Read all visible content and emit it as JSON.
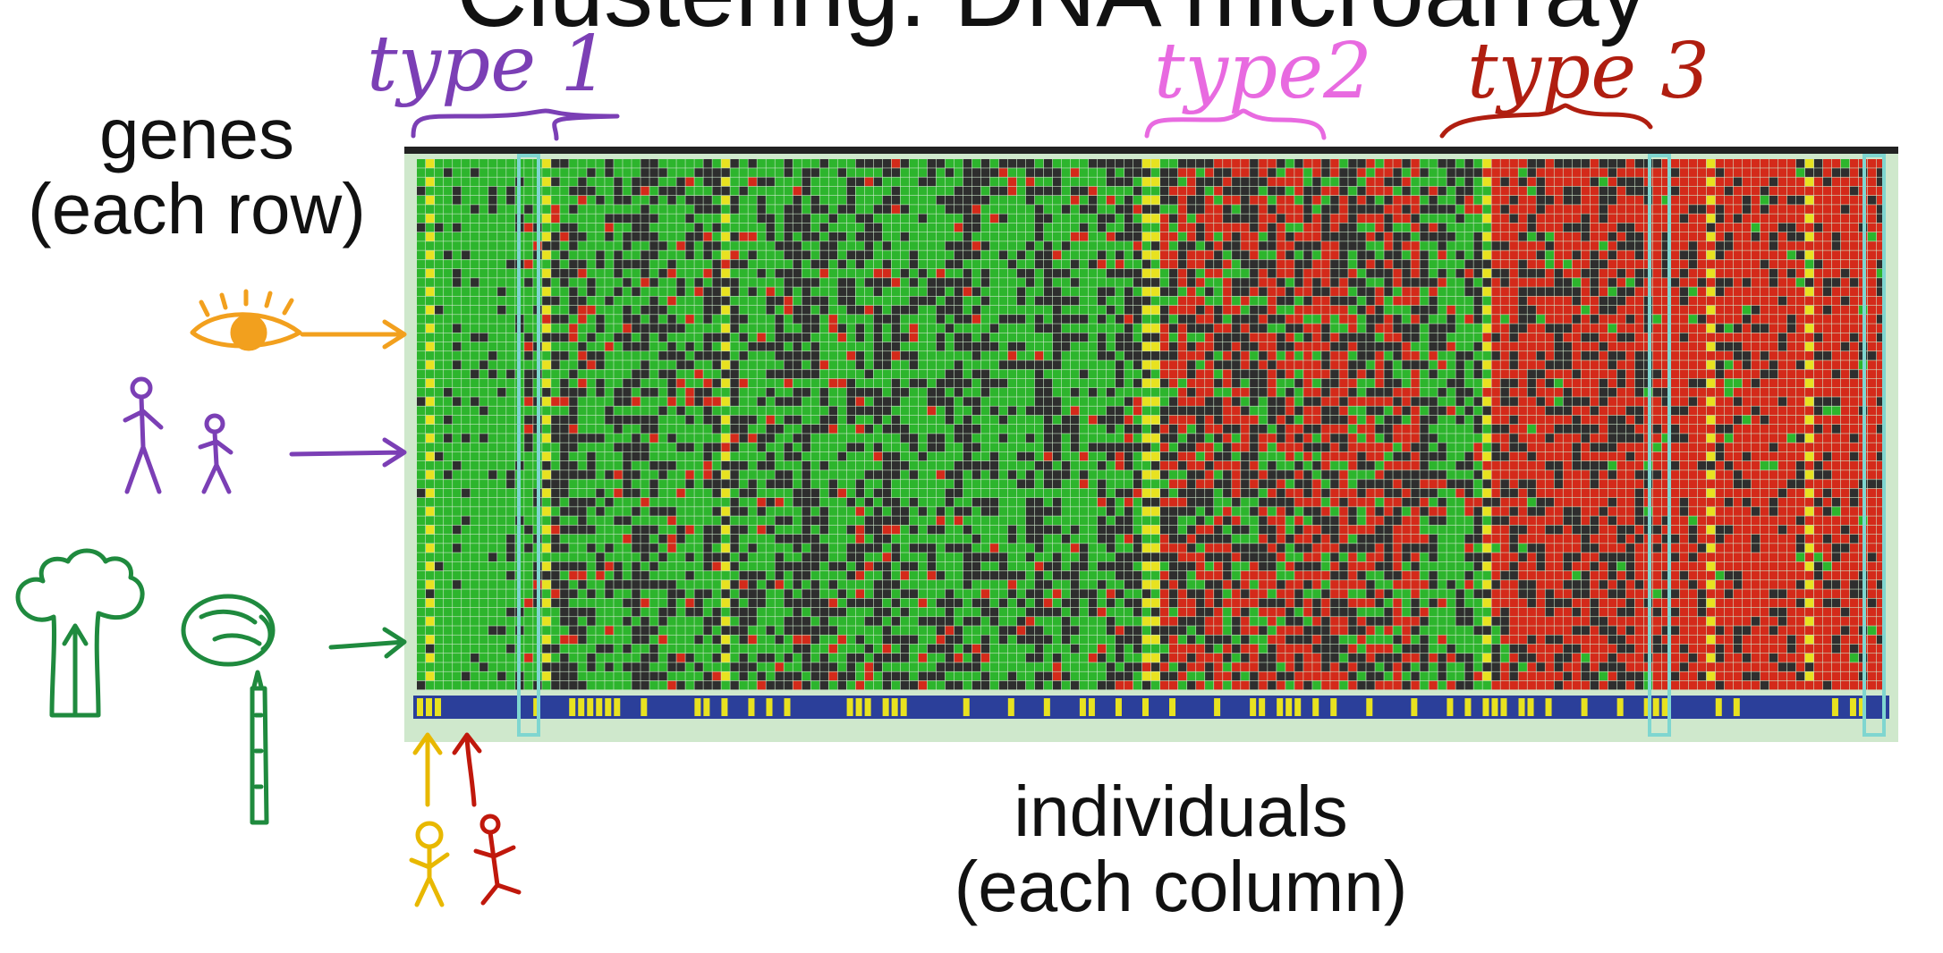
{
  "title": "Clustering: DNA microarray",
  "rows_label": "genes\n(each row)",
  "columns_label": "individuals\n(each column)",
  "clusters": [
    {
      "label": "type 1",
      "color": "#7b3fb5"
    },
    {
      "label": "type2",
      "color": "#e86ae0"
    },
    {
      "label": "type 3",
      "color": "#b01e10"
    }
  ],
  "colors": {
    "green": "#2db52d",
    "red": "#d42a1a",
    "dark": "#2e2e2e",
    "yellow": "#e8e220",
    "blue": "#2b3f9a",
    "frame": "#cfe8cc",
    "cyan": "#7fd6d0"
  },
  "annotations": [
    {
      "icon": "eye-icon",
      "color": "#f2a01e"
    },
    {
      "icon": "stick-figures-icon",
      "color": "#7b3fb5"
    },
    {
      "icon": "vegetables-icon",
      "color": "#1f8a3e"
    },
    {
      "icon": "person-icons",
      "color": "#e8b800"
    }
  ]
}
